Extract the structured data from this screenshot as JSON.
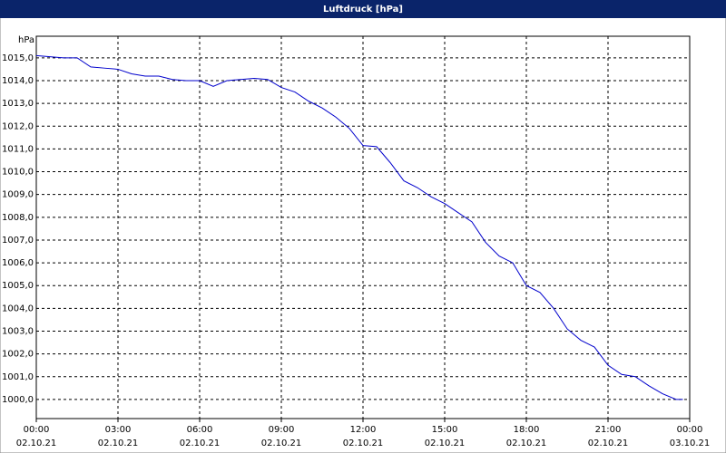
{
  "chart_data": {
    "type": "line",
    "title": "Luftdruck [hPa]",
    "y_unit": "hPa",
    "x": [
      0,
      0.5,
      1,
      1.5,
      2,
      2.5,
      3,
      3.5,
      4,
      4.5,
      5,
      5.5,
      6,
      6.5,
      7,
      7.5,
      8,
      8.5,
      9,
      9.5,
      10,
      10.5,
      11,
      11.5,
      12,
      12.5,
      13,
      13.5,
      14,
      14.5,
      15,
      15.5,
      16,
      16.5,
      17,
      17.5,
      18,
      18.5,
      19,
      19.5,
      20,
      20.5,
      21,
      21.5,
      22,
      22.5,
      23,
      23.5,
      23.75
    ],
    "series": [
      {
        "name": "Luftdruck",
        "color": "#0000cc",
        "values": [
          1015.1,
          1015.05,
          1015.0,
          1015.0,
          1014.6,
          1014.55,
          1014.5,
          1014.3,
          1014.2,
          1014.2,
          1014.05,
          1014.0,
          1014.0,
          1013.75,
          1014.0,
          1014.05,
          1014.1,
          1014.05,
          1013.7,
          1013.5,
          1013.1,
          1012.8,
          1012.4,
          1011.9,
          1011.15,
          1011.1,
          1010.4,
          1009.6,
          1009.3,
          1008.9,
          1008.6,
          1008.2,
          1007.8,
          1006.9,
          1006.3,
          1006.0,
          1005.0,
          1004.7,
          1004.0,
          1003.1,
          1002.6,
          1002.3,
          1001.5,
          1001.1,
          1001.0,
          1000.6,
          1000.25,
          1000.0,
          1000.0
        ]
      }
    ],
    "xlim": [
      0,
      24
    ],
    "xticks": [
      {
        "value": 0,
        "label": "00:00"
      },
      {
        "value": 3,
        "label": "03:00"
      },
      {
        "value": 6,
        "label": "06:00"
      },
      {
        "value": 9,
        "label": "09:00"
      },
      {
        "value": 12,
        "label": "12:00"
      },
      {
        "value": 15,
        "label": "15:00"
      },
      {
        "value": 18,
        "label": "18:00"
      },
      {
        "value": 21,
        "label": "21:00"
      },
      {
        "value": 24,
        "label": "00:00"
      }
    ],
    "xtick_dates": [
      "02.10.21",
      "02.10.21",
      "02.10.21",
      "02.10.21",
      "02.10.21",
      "02.10.21",
      "02.10.21",
      "02.10.21",
      "03.10.21"
    ],
    "ylim": [
      999.16,
      1015.95
    ],
    "yticks": [
      {
        "value": 1000,
        "label": "1000,0"
      },
      {
        "value": 1001,
        "label": "1001,0"
      },
      {
        "value": 1002,
        "label": "1002,0"
      },
      {
        "value": 1003,
        "label": "1003,0"
      },
      {
        "value": 1004,
        "label": "1004,0"
      },
      {
        "value": 1005,
        "label": "1005,0"
      },
      {
        "value": 1006,
        "label": "1006,0"
      },
      {
        "value": 1007,
        "label": "1007,0"
      },
      {
        "value": 1008,
        "label": "1008,0"
      },
      {
        "value": 1009,
        "label": "1009,0"
      },
      {
        "value": 1010,
        "label": "1010,0"
      },
      {
        "value": 1011,
        "label": "1011,0"
      },
      {
        "value": 1012,
        "label": "1012,0"
      },
      {
        "value": 1013,
        "label": "1013,0"
      },
      {
        "value": 1014,
        "label": "1014,0"
      },
      {
        "value": 1015,
        "label": "1015,0"
      }
    ],
    "grid": true
  }
}
